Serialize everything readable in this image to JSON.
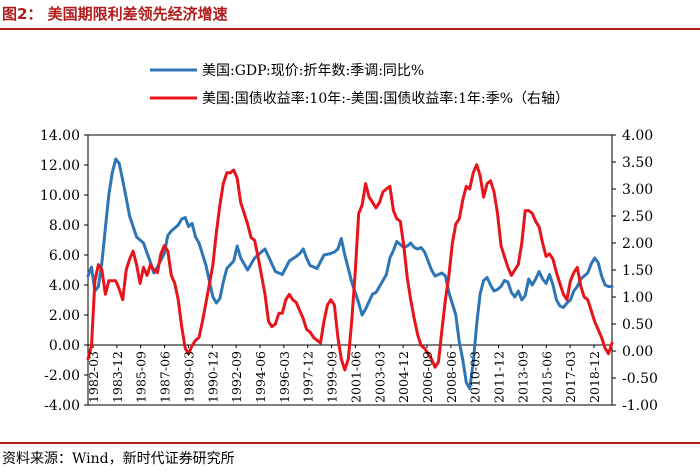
{
  "figure_title": "图2：  美国期限利差领先经济增速",
  "source_note": "资料来源：Wind，新时代证券研究所",
  "chart_data": {
    "type": "line",
    "title": "美国期限利差领先经济增速",
    "legend": [
      {
        "name": "美国:GDP:现价:折年数:季调:同比%",
        "color": "#2e75b6",
        "axis": "left"
      },
      {
        "name": "美国:国债收益率:10年:-美国:国债收益率:1年:季%（右轴）",
        "color": "#e8141b",
        "axis": "right"
      }
    ],
    "legend_position": "top-center",
    "x_tick_labels": [
      "1982-03",
      "1983-12",
      "1985-09",
      "1987-06",
      "1989-03",
      "1990-12",
      "1992-09",
      "1994-06",
      "1996-03",
      "1997-12",
      "1999-09",
      "2001-06",
      "2003-03",
      "2004-12",
      "2006-09",
      "2008-06",
      "2010-03",
      "2011-12",
      "2013-09",
      "2015-06",
      "2017-03",
      "2018-12"
    ],
    "x_start": 1982.0,
    "x_end": 2019.75,
    "left_axis": {
      "ylim": [
        -4,
        14
      ],
      "ticks": [
        -4,
        -2,
        0,
        2,
        4,
        6,
        8,
        10,
        12,
        14
      ],
      "tick_labels": [
        "-4.00",
        "-2.00",
        "0.00",
        "2.00",
        "4.00",
        "6.00",
        "8.00",
        "10.00",
        "12.00",
        "14.00"
      ]
    },
    "right_axis": {
      "ylim": [
        -1,
        4
      ],
      "ticks": [
        -1,
        -0.5,
        0,
        0.5,
        1,
        1.5,
        2,
        2.5,
        3,
        3.5,
        4
      ],
      "tick_labels": [
        "-1.00",
        "-0.50",
        "0.00",
        "0.50",
        "1.00",
        "1.50",
        "2.00",
        "2.50",
        "3.00",
        "3.50",
        "4.00"
      ]
    },
    "series": [
      {
        "name": "美国:GDP:现价:折年数:季调:同比%",
        "axis": "left",
        "color": "#2e75b6",
        "points": [
          [
            1982.0,
            4.6
          ],
          [
            1982.25,
            5.2
          ],
          [
            1982.5,
            3.6
          ],
          [
            1982.75,
            3.9
          ],
          [
            1983.0,
            5.5
          ],
          [
            1983.25,
            7.8
          ],
          [
            1983.5,
            10.0
          ],
          [
            1983.75,
            11.5
          ],
          [
            1984.0,
            12.4
          ],
          [
            1984.25,
            12.1
          ],
          [
            1984.5,
            11.0
          ],
          [
            1984.75,
            9.8
          ],
          [
            1985.0,
            8.6
          ],
          [
            1985.5,
            7.2
          ],
          [
            1986.0,
            6.8
          ],
          [
            1986.5,
            5.5
          ],
          [
            1986.75,
            4.8
          ],
          [
            1987.0,
            5.2
          ],
          [
            1987.5,
            6.1
          ],
          [
            1987.75,
            7.3
          ],
          [
            1988.0,
            7.6
          ],
          [
            1988.5,
            8.0
          ],
          [
            1988.75,
            8.4
          ],
          [
            1989.0,
            8.5
          ],
          [
            1989.25,
            7.9
          ],
          [
            1989.5,
            8.1
          ],
          [
            1989.75,
            7.2
          ],
          [
            1990.0,
            6.8
          ],
          [
            1990.5,
            5.3
          ],
          [
            1991.0,
            3.2
          ],
          [
            1991.25,
            2.8
          ],
          [
            1991.5,
            3.1
          ],
          [
            1991.75,
            4.2
          ],
          [
            1992.0,
            5.1
          ],
          [
            1992.5,
            5.6
          ],
          [
            1992.75,
            6.6
          ],
          [
            1993.0,
            5.8
          ],
          [
            1993.5,
            5.0
          ],
          [
            1994.0,
            5.8
          ],
          [
            1994.5,
            6.2
          ],
          [
            1994.75,
            6.4
          ],
          [
            1995.0,
            5.9
          ],
          [
            1995.5,
            4.9
          ],
          [
            1996.0,
            4.7
          ],
          [
            1996.5,
            5.6
          ],
          [
            1997.0,
            5.9
          ],
          [
            1997.25,
            6.1
          ],
          [
            1997.5,
            6.4
          ],
          [
            1997.75,
            5.8
          ],
          [
            1998.0,
            5.3
          ],
          [
            1998.5,
            5.1
          ],
          [
            1999.0,
            6.0
          ],
          [
            1999.5,
            6.1
          ],
          [
            1999.75,
            6.2
          ],
          [
            2000.0,
            6.4
          ],
          [
            2000.25,
            7.1
          ],
          [
            2000.5,
            6.0
          ],
          [
            2000.75,
            5.1
          ],
          [
            2001.0,
            4.2
          ],
          [
            2001.5,
            2.8
          ],
          [
            2001.75,
            2.0
          ],
          [
            2002.0,
            2.4
          ],
          [
            2002.5,
            3.4
          ],
          [
            2002.75,
            3.5
          ],
          [
            2003.0,
            3.9
          ],
          [
            2003.5,
            4.7
          ],
          [
            2003.75,
            5.8
          ],
          [
            2004.0,
            6.3
          ],
          [
            2004.25,
            6.9
          ],
          [
            2004.5,
            6.7
          ],
          [
            2004.75,
            6.5
          ],
          [
            2005.0,
            6.6
          ],
          [
            2005.25,
            6.8
          ],
          [
            2005.5,
            6.5
          ],
          [
            2005.75,
            6.4
          ],
          [
            2006.0,
            6.5
          ],
          [
            2006.25,
            6.2
          ],
          [
            2006.5,
            5.6
          ],
          [
            2006.75,
            5.0
          ],
          [
            2007.0,
            4.6
          ],
          [
            2007.5,
            4.8
          ],
          [
            2007.75,
            4.6
          ],
          [
            2008.0,
            3.5
          ],
          [
            2008.5,
            2.0
          ],
          [
            2008.75,
            0.2
          ],
          [
            2009.0,
            -1.0
          ],
          [
            2009.25,
            -2.5
          ],
          [
            2009.5,
            -2.9
          ],
          [
            2009.75,
            -1.2
          ],
          [
            2010.0,
            1.4
          ],
          [
            2010.25,
            3.4
          ],
          [
            2010.5,
            4.3
          ],
          [
            2010.75,
            4.5
          ],
          [
            2011.0,
            4.0
          ],
          [
            2011.25,
            3.6
          ],
          [
            2011.5,
            3.7
          ],
          [
            2011.75,
            3.9
          ],
          [
            2012.0,
            4.3
          ],
          [
            2012.25,
            4.2
          ],
          [
            2012.5,
            3.5
          ],
          [
            2012.75,
            3.2
          ],
          [
            2013.0,
            3.6
          ],
          [
            2013.25,
            3.0
          ],
          [
            2013.5,
            3.3
          ],
          [
            2013.75,
            4.4
          ],
          [
            2014.0,
            4.0
          ],
          [
            2014.25,
            4.4
          ],
          [
            2014.5,
            4.9
          ],
          [
            2014.75,
            4.4
          ],
          [
            2015.0,
            4.1
          ],
          [
            2015.25,
            4.7
          ],
          [
            2015.5,
            4.0
          ],
          [
            2015.75,
            3.0
          ],
          [
            2016.0,
            2.6
          ],
          [
            2016.25,
            2.5
          ],
          [
            2016.5,
            2.8
          ],
          [
            2016.75,
            3.0
          ],
          [
            2017.0,
            3.6
          ],
          [
            2017.25,
            3.9
          ],
          [
            2017.5,
            4.4
          ],
          [
            2017.75,
            4.6
          ],
          [
            2018.0,
            4.8
          ],
          [
            2018.25,
            5.4
          ],
          [
            2018.5,
            5.8
          ],
          [
            2018.75,
            5.5
          ],
          [
            2019.0,
            4.6
          ],
          [
            2019.25,
            4.0
          ],
          [
            2019.5,
            3.9
          ],
          [
            2019.75,
            3.9
          ]
        ]
      },
      {
        "name": "美国:国债收益率:10年:-美国:国债收益率:1年:季%（右轴）",
        "axis": "right",
        "color": "#e8141b",
        "points": [
          [
            1982.0,
            -0.15
          ],
          [
            1982.25,
            0.1
          ],
          [
            1982.5,
            1.3
          ],
          [
            1982.75,
            1.6
          ],
          [
            1983.0,
            1.5
          ],
          [
            1983.25,
            1.05
          ],
          [
            1983.5,
            1.3
          ],
          [
            1983.75,
            1.3
          ],
          [
            1984.0,
            1.3
          ],
          [
            1984.25,
            1.15
          ],
          [
            1984.5,
            0.95
          ],
          [
            1984.75,
            1.5
          ],
          [
            1985.0,
            1.7
          ],
          [
            1985.25,
            1.85
          ],
          [
            1985.5,
            1.6
          ],
          [
            1985.75,
            1.25
          ],
          [
            1986.0,
            1.55
          ],
          [
            1986.25,
            1.4
          ],
          [
            1986.5,
            1.6
          ],
          [
            1986.75,
            1.5
          ],
          [
            1987.0,
            1.45
          ],
          [
            1987.25,
            1.8
          ],
          [
            1987.5,
            1.95
          ],
          [
            1987.75,
            1.85
          ],
          [
            1988.0,
            1.4
          ],
          [
            1988.25,
            1.25
          ],
          [
            1988.5,
            0.95
          ],
          [
            1988.75,
            0.45
          ],
          [
            1989.0,
            0.05
          ],
          [
            1989.25,
            -0.05
          ],
          [
            1989.5,
            0.1
          ],
          [
            1989.75,
            0.2
          ],
          [
            1990.0,
            0.25
          ],
          [
            1990.25,
            0.55
          ],
          [
            1990.5,
            0.9
          ],
          [
            1990.75,
            1.25
          ],
          [
            1991.0,
            1.6
          ],
          [
            1991.25,
            2.2
          ],
          [
            1991.5,
            2.7
          ],
          [
            1991.75,
            3.1
          ],
          [
            1992.0,
            3.3
          ],
          [
            1992.25,
            3.3
          ],
          [
            1992.5,
            3.35
          ],
          [
            1992.75,
            3.2
          ],
          [
            1993.0,
            2.75
          ],
          [
            1993.25,
            2.55
          ],
          [
            1993.5,
            2.35
          ],
          [
            1993.75,
            2.1
          ],
          [
            1994.0,
            2.05
          ],
          [
            1994.25,
            1.75
          ],
          [
            1994.5,
            1.4
          ],
          [
            1994.75,
            1.05
          ],
          [
            1995.0,
            0.55
          ],
          [
            1995.25,
            0.45
          ],
          [
            1995.5,
            0.5
          ],
          [
            1995.75,
            0.7
          ],
          [
            1996.0,
            0.7
          ],
          [
            1996.25,
            0.95
          ],
          [
            1996.5,
            1.05
          ],
          [
            1996.75,
            0.95
          ],
          [
            1997.0,
            0.9
          ],
          [
            1997.25,
            0.75
          ],
          [
            1997.5,
            0.6
          ],
          [
            1997.75,
            0.4
          ],
          [
            1998.0,
            0.35
          ],
          [
            1998.25,
            0.25
          ],
          [
            1998.5,
            0.2
          ],
          [
            1998.75,
            0.15
          ],
          [
            1999.0,
            0.55
          ],
          [
            1999.25,
            0.85
          ],
          [
            1999.5,
            0.95
          ],
          [
            1999.75,
            0.85
          ],
          [
            2000.0,
            0.25
          ],
          [
            2000.25,
            -0.15
          ],
          [
            2000.5,
            -0.35
          ],
          [
            2000.75,
            -0.15
          ],
          [
            2001.0,
            0.55
          ],
          [
            2001.25,
            1.45
          ],
          [
            2001.5,
            2.55
          ],
          [
            2001.75,
            2.7
          ],
          [
            2002.0,
            3.1
          ],
          [
            2002.25,
            2.85
          ],
          [
            2002.5,
            2.75
          ],
          [
            2002.75,
            2.65
          ],
          [
            2003.0,
            2.75
          ],
          [
            2003.25,
            2.95
          ],
          [
            2003.5,
            3.0
          ],
          [
            2003.75,
            3.05
          ],
          [
            2004.0,
            2.6
          ],
          [
            2004.25,
            2.45
          ],
          [
            2004.5,
            2.4
          ],
          [
            2004.75,
            1.95
          ],
          [
            2005.0,
            1.35
          ],
          [
            2005.25,
            0.95
          ],
          [
            2005.5,
            0.6
          ],
          [
            2005.75,
            0.3
          ],
          [
            2006.0,
            0.1
          ],
          [
            2006.25,
            0.05
          ],
          [
            2006.5,
            -0.05
          ],
          [
            2006.75,
            -0.15
          ],
          [
            2007.0,
            -0.3
          ],
          [
            2007.25,
            -0.2
          ],
          [
            2007.5,
            0.4
          ],
          [
            2007.75,
            0.95
          ],
          [
            2008.0,
            1.4
          ],
          [
            2008.25,
            2.0
          ],
          [
            2008.5,
            2.35
          ],
          [
            2008.75,
            2.45
          ],
          [
            2009.0,
            2.8
          ],
          [
            2009.25,
            3.05
          ],
          [
            2009.5,
            3.0
          ],
          [
            2009.75,
            3.3
          ],
          [
            2010.0,
            3.45
          ],
          [
            2010.25,
            3.25
          ],
          [
            2010.5,
            2.85
          ],
          [
            2010.75,
            3.1
          ],
          [
            2011.0,
            3.15
          ],
          [
            2011.25,
            2.95
          ],
          [
            2011.5,
            2.55
          ],
          [
            2011.75,
            1.95
          ],
          [
            2012.0,
            1.75
          ],
          [
            2012.25,
            1.55
          ],
          [
            2012.5,
            1.4
          ],
          [
            2012.75,
            1.5
          ],
          [
            2013.0,
            1.6
          ],
          [
            2013.25,
            2.0
          ],
          [
            2013.5,
            2.6
          ],
          [
            2013.75,
            2.6
          ],
          [
            2014.0,
            2.55
          ],
          [
            2014.25,
            2.4
          ],
          [
            2014.5,
            2.3
          ],
          [
            2014.75,
            2.0
          ],
          [
            2015.0,
            1.75
          ],
          [
            2015.25,
            1.8
          ],
          [
            2015.5,
            1.7
          ],
          [
            2015.75,
            1.45
          ],
          [
            2016.0,
            1.25
          ],
          [
            2016.25,
            1.05
          ],
          [
            2016.5,
            0.95
          ],
          [
            2016.75,
            1.3
          ],
          [
            2017.0,
            1.45
          ],
          [
            2017.25,
            1.55
          ],
          [
            2017.5,
            1.2
          ],
          [
            2017.75,
            1.0
          ],
          [
            2018.0,
            0.95
          ],
          [
            2018.25,
            0.75
          ],
          [
            2018.5,
            0.55
          ],
          [
            2018.75,
            0.4
          ],
          [
            2019.0,
            0.25
          ],
          [
            2019.25,
            0.05
          ],
          [
            2019.5,
            -0.05
          ],
          [
            2019.75,
            0.15
          ]
        ]
      }
    ]
  }
}
